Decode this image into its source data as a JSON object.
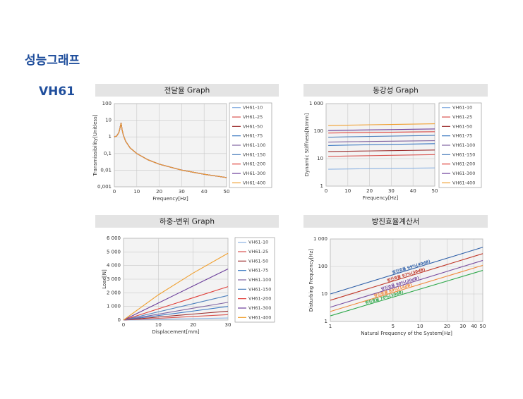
{
  "header": {
    "title": "성능그래프",
    "model": "VH61"
  },
  "chart_data": [
    {
      "type": "line",
      "title": "전달율 Graph",
      "xlabel": "Frequency[Hz]",
      "ylabel": "Transmissibility[Unitless]",
      "x": [
        0,
        1,
        2,
        2.5,
        3,
        3.5,
        4,
        5,
        7,
        10,
        15,
        20,
        30,
        40,
        50
      ],
      "xlim": [
        0,
        50
      ],
      "xticks": [
        0,
        10,
        20,
        30,
        40,
        50
      ],
      "ylim": [
        0.001,
        100
      ],
      "ylog": true,
      "yticks": [
        {
          "value": 0.001,
          "label": "0,001"
        },
        {
          "value": 0.01,
          "label": "0,01"
        },
        {
          "value": 0.1,
          "label": "0,1"
        },
        1,
        10,
        100
      ],
      "grid": true,
      "legend": "right",
      "series": [
        {
          "name": "VH61-10",
          "color": "#8db3e2",
          "values": [
            1,
            1.12,
            1.8,
            3.3,
            7,
            2.5,
            1.3,
            0.56,
            0.22,
            0.1,
            0.042,
            0.023,
            0.0101,
            0.0057,
            0.0036
          ]
        },
        {
          "name": "VH61-25",
          "color": "#d9534f",
          "values": [
            1,
            1.12,
            1.8,
            3.3,
            7,
            2.5,
            1.3,
            0.56,
            0.22,
            0.1,
            0.042,
            0.023,
            0.0101,
            0.0057,
            0.0036
          ]
        },
        {
          "name": "VH61-50",
          "color": "#9b2d2d",
          "values": [
            1,
            1.12,
            1.8,
            3.3,
            7,
            2.5,
            1.3,
            0.56,
            0.22,
            0.1,
            0.042,
            0.023,
            0.0101,
            0.0057,
            0.0036
          ]
        },
        {
          "name": "VH61-75",
          "color": "#3a78c2",
          "values": [
            1,
            1.12,
            1.8,
            3.3,
            7,
            2.5,
            1.3,
            0.56,
            0.22,
            0.1,
            0.042,
            0.023,
            0.0101,
            0.0057,
            0.0036
          ]
        },
        {
          "name": "VH61-100",
          "color": "#8064a2",
          "values": [
            1,
            1.12,
            1.8,
            3.3,
            7,
            2.5,
            1.3,
            0.56,
            0.22,
            0.1,
            0.042,
            0.023,
            0.0101,
            0.0057,
            0.0036
          ]
        },
        {
          "name": "VH61-150",
          "color": "#4f81bd",
          "values": [
            1,
            1.12,
            1.8,
            3.3,
            7,
            2.5,
            1.3,
            0.56,
            0.22,
            0.1,
            0.042,
            0.023,
            0.0101,
            0.0057,
            0.0036
          ]
        },
        {
          "name": "VH61-200",
          "color": "#e0403a",
          "values": [
            1,
            1.12,
            1.8,
            3.3,
            7,
            2.5,
            1.3,
            0.56,
            0.22,
            0.1,
            0.042,
            0.023,
            0.0101,
            0.0057,
            0.0036
          ]
        },
        {
          "name": "VH61-300",
          "color": "#6a3d9a",
          "values": [
            1,
            1.12,
            1.8,
            3.3,
            7,
            2.5,
            1.3,
            0.56,
            0.22,
            0.1,
            0.042,
            0.023,
            0.0101,
            0.0057,
            0.0036
          ]
        },
        {
          "name": "VH61-400",
          "color": "#f0a030",
          "values": [
            1,
            1.12,
            1.8,
            3.3,
            7,
            2.5,
            1.3,
            0.56,
            0.22,
            0.1,
            0.042,
            0.023,
            0.0101,
            0.0057,
            0.0036
          ]
        }
      ]
    },
    {
      "type": "line",
      "title": "동강성 Graph",
      "xlabel": "Frequency[Hz]",
      "ylabel": "Dynamic Stiffness[N/mm]",
      "x": [
        1,
        10,
        20,
        30,
        40,
        50
      ],
      "xlim": [
        0,
        50
      ],
      "xticks": [
        0,
        10,
        20,
        30,
        40,
        50
      ],
      "ylim": [
        1,
        1000
      ],
      "ylog": true,
      "yticks": [
        1,
        10,
        100,
        {
          "value": 1000,
          "label": "1 000"
        }
      ],
      "grid": true,
      "legend": "right",
      "series": [
        {
          "name": "VH61-10",
          "color": "#8db3e2",
          "values": [
            4.1,
            4.2,
            4.3,
            4.4,
            4.5,
            4.6
          ]
        },
        {
          "name": "VH61-25",
          "color": "#d9534f",
          "values": [
            12,
            12.4,
            12.8,
            13.2,
            13.6,
            14
          ]
        },
        {
          "name": "VH61-50",
          "color": "#9b2d2d",
          "values": [
            18,
            18.5,
            19,
            19.5,
            20,
            20.5
          ]
        },
        {
          "name": "VH61-75",
          "color": "#3a78c2",
          "values": [
            30,
            31,
            32,
            33,
            34,
            35
          ]
        },
        {
          "name": "VH61-100",
          "color": "#8064a2",
          "values": [
            40,
            41,
            42,
            43,
            44,
            45
          ]
        },
        {
          "name": "VH61-150",
          "color": "#4f81bd",
          "values": [
            60,
            62,
            64,
            66,
            68,
            70
          ]
        },
        {
          "name": "VH61-200",
          "color": "#e0403a",
          "values": [
            85,
            87,
            89,
            91,
            93,
            95
          ]
        },
        {
          "name": "VH61-300",
          "color": "#6a3d9a",
          "values": [
            105,
            108,
            111,
            114,
            117,
            120
          ]
        },
        {
          "name": "VH61-400",
          "color": "#f0a030",
          "values": [
            160,
            165,
            170,
            175,
            180,
            185
          ]
        }
      ]
    },
    {
      "type": "line",
      "title": "하중-변위 Graph",
      "xlabel": "Displacement[mm]",
      "ylabel": "Load[N]",
      "x": [
        0,
        10,
        20,
        30
      ],
      "xlim": [
        0,
        30
      ],
      "xticks": [
        0,
        10,
        20,
        30
      ],
      "ylim": [
        0,
        6000
      ],
      "yticks": [
        0,
        {
          "value": 1000,
          "label": "1 000"
        },
        {
          "value": 2000,
          "label": "2 000"
        },
        {
          "value": 3000,
          "label": "3 000"
        },
        {
          "value": 4000,
          "label": "4 000"
        },
        {
          "value": 5000,
          "label": "5 000"
        },
        {
          "value": 6000,
          "label": "6 000"
        }
      ],
      "grid": true,
      "legend": "right",
      "series": [
        {
          "name": "VH61-10",
          "color": "#8db3e2",
          "values": [
            0,
            50,
            100,
            150
          ]
        },
        {
          "name": "VH61-25",
          "color": "#d9534f",
          "values": [
            0,
            130,
            260,
            400
          ]
        },
        {
          "name": "VH61-50",
          "color": "#9b2d2d",
          "values": [
            0,
            220,
            440,
            650
          ]
        },
        {
          "name": "VH61-75",
          "color": "#3a78c2",
          "values": [
            0,
            330,
            660,
            1000
          ]
        },
        {
          "name": "VH61-100",
          "color": "#8064a2",
          "values": [
            0,
            430,
            870,
            1300
          ]
        },
        {
          "name": "VH61-150",
          "color": "#4f81bd",
          "values": [
            0,
            600,
            1200,
            1800
          ]
        },
        {
          "name": "VH61-200",
          "color": "#e0403a",
          "values": [
            0,
            820,
            1640,
            2450
          ]
        },
        {
          "name": "VH61-300",
          "color": "#6a3d9a",
          "values": [
            0,
            1250,
            2500,
            3750
          ]
        },
        {
          "name": "VH61-400",
          "color": "#f0a030",
          "values": [
            0,
            1850,
            3450,
            4900
          ]
        }
      ]
    },
    {
      "type": "line",
      "title": "방진효율계산서",
      "xlabel": "Natural Frequency of the System[Hz]",
      "ylabel": "Disturbing Frequency[Hz]",
      "x": [
        1,
        50
      ],
      "xlim": [
        1,
        50
      ],
      "xlog": true,
      "xticks": [
        1,
        5,
        10,
        20,
        30,
        40,
        50
      ],
      "ylim": [
        1,
        1000
      ],
      "ylog": true,
      "yticks": [
        1,
        10,
        100,
        {
          "value": 1000,
          "label": "1 000"
        }
      ],
      "grid": true,
      "legend": "on-line",
      "series": [
        {
          "name": "방진효율 99%(40dB)",
          "color": "#2e5fa8",
          "values": [
            10,
            500
          ]
        },
        {
          "name": "방진효율 97%(30dB)",
          "color": "#c0392b",
          "values": [
            5.9,
            293
          ]
        },
        {
          "name": "방진효율 90%(20dB)",
          "color": "#7a4ea0",
          "values": [
            3.3,
            166
          ]
        },
        {
          "name": "방진효율 80%(14dB)",
          "color": "#f08a3c",
          "values": [
            2.3,
            110
          ]
        },
        {
          "name": "방진효율 70%(10dB)",
          "color": "#2ea84a",
          "values": [
            1.6,
            72
          ]
        }
      ]
    }
  ]
}
